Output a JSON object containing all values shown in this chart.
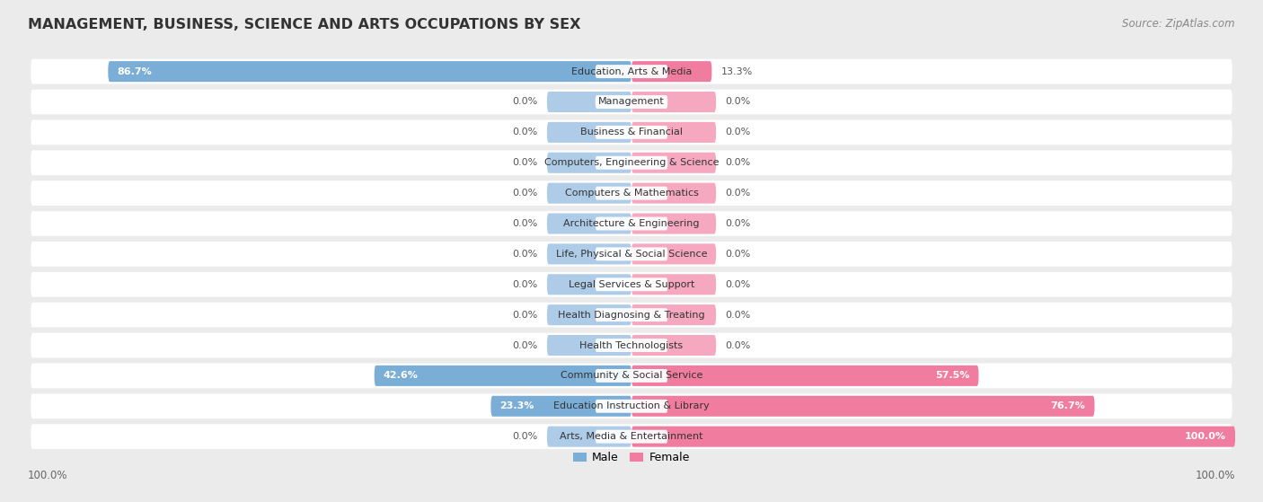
{
  "title": "MANAGEMENT, BUSINESS, SCIENCE AND ARTS OCCUPATIONS BY SEX",
  "source": "Source: ZipAtlas.com",
  "categories": [
    "Education, Arts & Media",
    "Management",
    "Business & Financial",
    "Computers, Engineering & Science",
    "Computers & Mathematics",
    "Architecture & Engineering",
    "Life, Physical & Social Science",
    "Legal Services & Support",
    "Health Diagnosing & Treating",
    "Health Technologists",
    "Community & Social Service",
    "Education Instruction & Library",
    "Arts, Media & Entertainment"
  ],
  "male_values": [
    86.7,
    0.0,
    0.0,
    0.0,
    0.0,
    0.0,
    0.0,
    0.0,
    0.0,
    0.0,
    42.6,
    23.3,
    0.0
  ],
  "female_values": [
    13.3,
    0.0,
    0.0,
    0.0,
    0.0,
    0.0,
    0.0,
    0.0,
    0.0,
    0.0,
    57.5,
    76.7,
    100.0
  ],
  "male_color": "#7aaed6",
  "female_color": "#f07ca0",
  "male_color_light": "#aecce8",
  "female_color_light": "#f5a8c0",
  "male_label": "Male",
  "female_label": "Female",
  "background_color": "#ebebeb",
  "row_bg_color": "#ffffff",
  "axis_label_left": "100.0%",
  "axis_label_right": "100.0%",
  "title_fontsize": 11.5,
  "source_fontsize": 8.5,
  "bar_label_fontsize": 8,
  "cat_label_fontsize": 8,
  "stub_size": 14
}
